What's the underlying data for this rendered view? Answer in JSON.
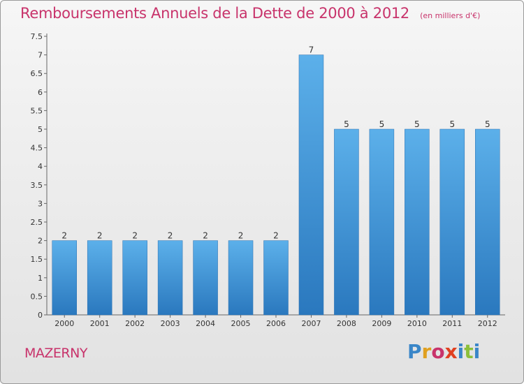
{
  "header": {
    "title": "Remboursements Annuels de la Dette de 2000 à 2012",
    "unit": "(en milliers d'€)"
  },
  "footer": {
    "place": "MAZERNY",
    "brand_letters": [
      {
        "ch": "P",
        "color": "#3a86c8"
      },
      {
        "ch": "r",
        "color": "#e0a020"
      },
      {
        "ch": "o",
        "color": "#c8336b"
      },
      {
        "ch": "x",
        "color": "#e04020"
      },
      {
        "ch": "i",
        "color": "#3a86c8"
      },
      {
        "ch": "t",
        "color": "#8cbf3a"
      },
      {
        "ch": "i",
        "color": "#3a86c8"
      }
    ]
  },
  "chart_data": {
    "type": "bar",
    "title": "Remboursements Annuels de la Dette de 2000 à 2012",
    "unit": "(en milliers d'€)",
    "categories": [
      "2000",
      "2001",
      "2002",
      "2003",
      "2004",
      "2005",
      "2006",
      "2007",
      "2008",
      "2009",
      "2010",
      "2011",
      "2012"
    ],
    "values": [
      2,
      2,
      2,
      2,
      2,
      2,
      2,
      7,
      5,
      5,
      5,
      5,
      5
    ],
    "value_labels": [
      "2",
      "2",
      "2",
      "2",
      "2",
      "2",
      "2",
      "7",
      "5",
      "5",
      "5",
      "5",
      "5"
    ],
    "ylim": [
      0,
      7.5
    ],
    "yticks": [
      0,
      0.5,
      1,
      1.5,
      2,
      2.5,
      3,
      3.5,
      4,
      4.5,
      5,
      5.5,
      6,
      6.5,
      7,
      7.5
    ],
    "ytick_labels": [
      "0",
      "0.5",
      "1",
      "1.5",
      "2",
      "2.5",
      "3",
      "3.5",
      "4",
      "4.5",
      "5",
      "5.5",
      "6",
      "6.5",
      "7",
      "7.5"
    ],
    "grid": false,
    "bar_color": "#3a8fd6"
  }
}
